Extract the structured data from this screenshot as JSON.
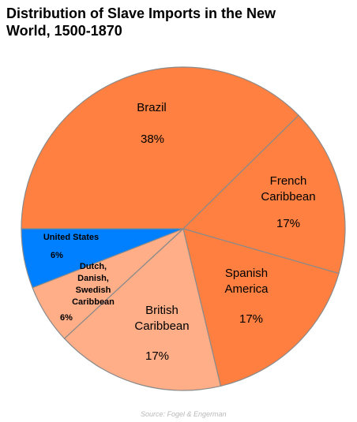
{
  "chart_data": {
    "type": "pie",
    "title": "Distribution of Slave Imports in the New World, 1500-1870",
    "categories": [
      "Brazil",
      "French\nCaribbean",
      "Spanish\nAmerica",
      "British\nCaribbean",
      "Dutch,\nDanish,\nSwedish\nCaribbean",
      "United States"
    ],
    "values": [
      38,
      17,
      17,
      17,
      6,
      6
    ],
    "value_labels": [
      "38%",
      "17%",
      "17%",
      "17%",
      "6%",
      "6%"
    ],
    "colors": [
      "#ff8040",
      "#ff8040",
      "#ff7f40",
      "#ffae88",
      "#ffae88",
      "#0080ff"
    ],
    "source": "Source: Fogel & Engerman"
  }
}
